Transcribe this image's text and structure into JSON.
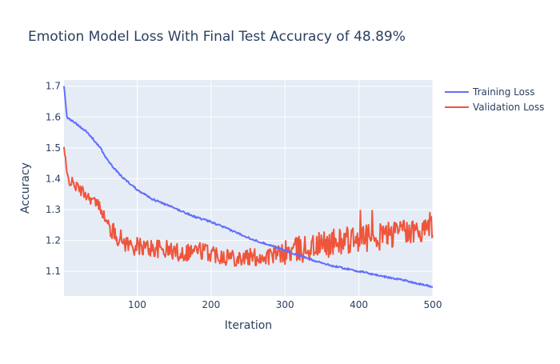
{
  "chart_data": {
    "type": "line",
    "title": "Emotion Model Loss With Final Test Accuracy of 48.89%",
    "xlabel": "Iteration",
    "ylabel": "Accuracy",
    "xlim": [
      1,
      500
    ],
    "ylim": [
      1.02,
      1.72
    ],
    "x_ticks": [
      100,
      200,
      300,
      400,
      500
    ],
    "y_ticks": [
      1.1,
      1.2,
      1.3,
      1.4,
      1.5,
      1.6,
      1.7
    ],
    "grid": true,
    "legend_position": "top-right",
    "x": [
      1,
      5,
      10,
      20,
      30,
      40,
      50,
      60,
      70,
      80,
      90,
      100,
      120,
      140,
      160,
      180,
      200,
      220,
      240,
      260,
      280,
      300,
      320,
      340,
      360,
      380,
      400,
      420,
      440,
      460,
      480,
      500
    ],
    "series": [
      {
        "name": "Training Loss",
        "color": "#636efa",
        "values": [
          1.7,
          1.6,
          1.59,
          1.575,
          1.555,
          1.53,
          1.5,
          1.46,
          1.43,
          1.405,
          1.385,
          1.365,
          1.335,
          1.315,
          1.295,
          1.275,
          1.26,
          1.24,
          1.22,
          1.2,
          1.185,
          1.168,
          1.15,
          1.135,
          1.12,
          1.11,
          1.1,
          1.09,
          1.08,
          1.072,
          1.06,
          1.05
        ]
      },
      {
        "name": "Validation Loss",
        "color": "#ef553b",
        "values": [
          1.5,
          1.41,
          1.39,
          1.37,
          1.35,
          1.33,
          1.31,
          1.25,
          1.22,
          1.2,
          1.185,
          1.18,
          1.175,
          1.17,
          1.16,
          1.17,
          1.16,
          1.15,
          1.145,
          1.145,
          1.15,
          1.16,
          1.17,
          1.18,
          1.19,
          1.2,
          1.2,
          1.21,
          1.22,
          1.22,
          1.23,
          1.25
        ]
      }
    ]
  }
}
